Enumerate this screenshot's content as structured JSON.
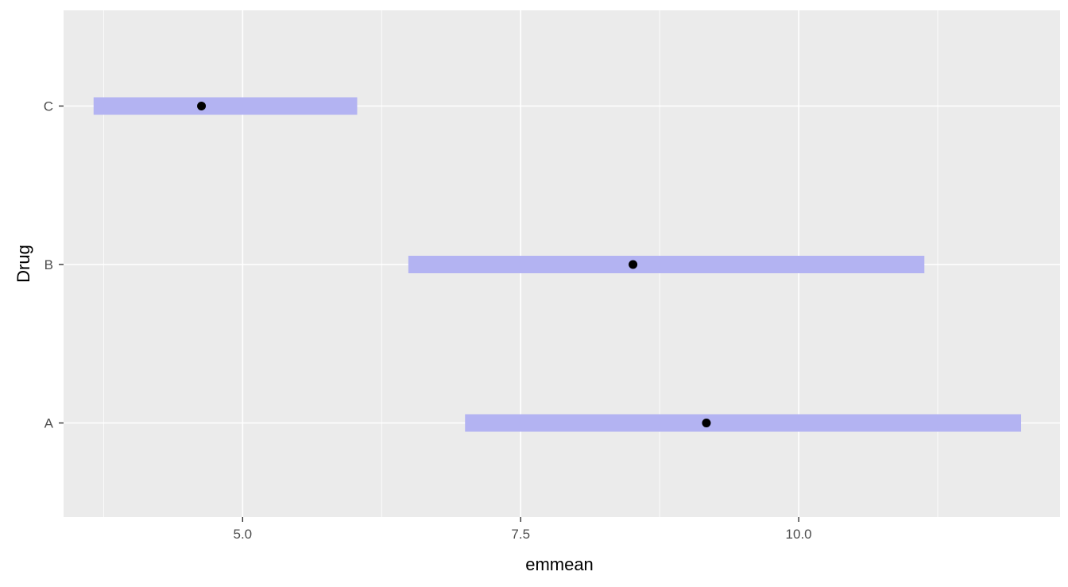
{
  "chart_data": {
    "type": "errorbar",
    "xlabel": "emmean",
    "ylabel": "Drug",
    "categories": [
      "A",
      "B",
      "C"
    ],
    "estimates": [
      9.17,
      8.51,
      4.63
    ],
    "lower": [
      7.0,
      6.49,
      3.66
    ],
    "upper": [
      12.0,
      11.13,
      6.03
    ],
    "xlim": [
      3.39,
      12.35
    ],
    "x_ticks": [
      5.0,
      7.5,
      10.0
    ],
    "x_tick_labels": [
      "5.0",
      "7.5",
      "10.0"
    ],
    "grid": true,
    "colors": {
      "panel_background": "#ebebeb",
      "grid": "#ffffff",
      "interval_bar": "#b3b3f2",
      "point": "#000000",
      "tick_mark": "#333333"
    }
  }
}
